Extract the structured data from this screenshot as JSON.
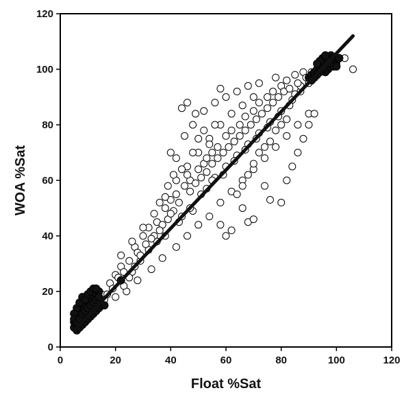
{
  "chart_data": {
    "type": "scatter",
    "title": "",
    "xlabel": "Float %Sat",
    "ylabel": "WOA %Sat",
    "xlim": [
      0,
      120
    ],
    "ylim": [
      0,
      120
    ],
    "xticks": [
      "0",
      "20",
      "40",
      "60",
      "80",
      "100",
      "120"
    ],
    "yticks": [
      "0",
      "20",
      "40",
      "60",
      "80",
      "100",
      "120"
    ],
    "grid": false,
    "legend": "none",
    "colors": {
      "axis": "#000000",
      "open_marker": "#ffffff",
      "filled_marker": "#111111",
      "fit_line": "#111111"
    },
    "series": [
      {
        "marker": "open-circle",
        "points": [
          [
            15,
            19
          ],
          [
            18,
            23
          ],
          [
            20,
            26
          ],
          [
            22,
            29
          ],
          [
            25,
            31
          ],
          [
            27,
            36
          ],
          [
            30,
            40
          ],
          [
            32,
            43
          ],
          [
            35,
            45
          ],
          [
            38,
            50
          ],
          [
            40,
            53
          ],
          [
            42,
            55
          ],
          [
            45,
            58
          ],
          [
            47,
            60
          ],
          [
            50,
            64
          ],
          [
            52,
            66
          ],
          [
            55,
            70
          ],
          [
            57,
            72
          ],
          [
            60,
            76
          ],
          [
            62,
            78
          ],
          [
            65,
            80
          ],
          [
            67,
            83
          ],
          [
            70,
            85
          ],
          [
            72,
            88
          ],
          [
            75,
            90
          ],
          [
            77,
            92
          ],
          [
            80,
            94
          ],
          [
            82,
            96
          ],
          [
            85,
            98
          ],
          [
            88,
            99
          ],
          [
            24,
            20
          ],
          [
            28,
            24
          ],
          [
            33,
            28
          ],
          [
            37,
            32
          ],
          [
            42,
            36
          ],
          [
            46,
            40
          ],
          [
            50,
            44
          ],
          [
            54,
            47
          ],
          [
            58,
            52
          ],
          [
            62,
            56
          ],
          [
            66,
            60
          ],
          [
            70,
            64
          ],
          [
            74,
            68
          ],
          [
            78,
            72
          ],
          [
            82,
            76
          ],
          [
            86,
            80
          ],
          [
            90,
            84
          ],
          [
            22,
            33
          ],
          [
            26,
            38
          ],
          [
            30,
            43
          ],
          [
            34,
            48
          ],
          [
            38,
            54
          ],
          [
            42,
            60
          ],
          [
            46,
            65
          ],
          [
            50,
            70
          ],
          [
            54,
            75
          ],
          [
            58,
            80
          ],
          [
            62,
            84
          ],
          [
            66,
            87
          ],
          [
            70,
            90
          ],
          [
            20,
            18
          ],
          [
            23,
            22
          ],
          [
            26,
            27
          ],
          [
            29,
            31
          ],
          [
            32,
            35
          ],
          [
            35,
            38
          ],
          [
            44,
            47
          ],
          [
            48,
            49
          ],
          [
            53,
            57
          ],
          [
            56,
            61
          ],
          [
            60,
            65
          ],
          [
            64,
            69
          ],
          [
            68,
            73
          ],
          [
            72,
            77
          ],
          [
            76,
            81
          ],
          [
            80,
            85
          ],
          [
            84,
            89
          ],
          [
            87,
            92
          ],
          [
            90,
            95
          ],
          [
            92,
            97
          ],
          [
            40,
            70
          ],
          [
            42,
            68
          ],
          [
            45,
            76
          ],
          [
            48,
            80
          ],
          [
            52,
            85
          ],
          [
            56,
            88
          ],
          [
            60,
            90
          ],
          [
            64,
            92
          ],
          [
            68,
            94
          ],
          [
            44,
            86
          ],
          [
            46,
            88
          ],
          [
            49,
            84
          ],
          [
            58,
            93
          ],
          [
            72,
            95
          ],
          [
            78,
            97
          ],
          [
            68,
            45
          ],
          [
            70,
            46
          ],
          [
            62,
            42
          ],
          [
            60,
            40
          ],
          [
            80,
            52
          ],
          [
            74,
            58
          ],
          [
            82,
            60
          ],
          [
            84,
            65
          ],
          [
            86,
            70
          ],
          [
            76,
            53
          ],
          [
            88,
            75
          ],
          [
            90,
            80
          ],
          [
            92,
            84
          ],
          [
            66,
            50
          ],
          [
            58,
            44
          ],
          [
            36,
            52
          ],
          [
            39,
            58
          ],
          [
            41,
            62
          ],
          [
            43,
            45
          ],
          [
            47,
            50
          ],
          [
            51,
            55
          ],
          [
            55,
            60
          ],
          [
            59,
            62
          ],
          [
            63,
            67
          ],
          [
            67,
            71
          ],
          [
            71,
            75
          ],
          [
            75,
            79
          ],
          [
            79,
            83
          ],
          [
            83,
            87
          ],
          [
            85,
            91
          ],
          [
            87,
            94
          ],
          [
            31,
            37
          ],
          [
            28,
            34
          ],
          [
            34,
            40
          ],
          [
            37,
            44
          ],
          [
            21,
            25
          ],
          [
            19,
            21
          ],
          [
            17,
            19
          ],
          [
            16,
            17
          ],
          [
            23,
            27
          ],
          [
            25,
            25
          ],
          [
            27,
            29
          ],
          [
            29,
            33
          ],
          [
            33,
            39
          ],
          [
            36,
            42
          ],
          [
            39,
            46
          ],
          [
            41,
            49
          ],
          [
            43,
            52
          ],
          [
            47,
            56
          ],
          [
            49,
            59
          ],
          [
            51,
            61
          ],
          [
            53,
            63
          ],
          [
            55,
            66
          ],
          [
            57,
            68
          ],
          [
            59,
            70
          ],
          [
            61,
            72
          ],
          [
            63,
            74
          ],
          [
            65,
            76
          ],
          [
            67,
            78
          ],
          [
            69,
            80
          ],
          [
            71,
            82
          ],
          [
            73,
            84
          ],
          [
            75,
            86
          ],
          [
            77,
            88
          ],
          [
            79,
            90
          ],
          [
            81,
            92
          ],
          [
            83,
            93
          ],
          [
            86,
            95
          ],
          [
            89,
            97
          ],
          [
            91,
            99
          ],
          [
            93,
            100
          ],
          [
            95,
            101
          ],
          [
            100,
            102
          ],
          [
            103,
            104
          ],
          [
            106,
            100
          ],
          [
            50,
            75
          ],
          [
            52,
            78
          ],
          [
            54,
            73
          ],
          [
            56,
            80
          ],
          [
            53,
            68
          ],
          [
            48,
            70
          ],
          [
            46,
            62
          ],
          [
            44,
            64
          ],
          [
            40,
            48
          ],
          [
            38,
            40
          ],
          [
            64,
            55
          ],
          [
            66,
            58
          ],
          [
            68,
            62
          ],
          [
            70,
            66
          ],
          [
            72,
            70
          ],
          [
            74,
            72
          ],
          [
            76,
            74
          ],
          [
            78,
            78
          ],
          [
            80,
            80
          ],
          [
            82,
            82
          ]
        ]
      },
      {
        "marker": "filled-circle",
        "points": [
          [
            5,
            7
          ],
          [
            5,
            9
          ],
          [
            6,
            8
          ],
          [
            6,
            11
          ],
          [
            7,
            9
          ],
          [
            7,
            12
          ],
          [
            8,
            10
          ],
          [
            8,
            14
          ],
          [
            9,
            11
          ],
          [
            9,
            15
          ],
          [
            10,
            12
          ],
          [
            10,
            16
          ],
          [
            11,
            13
          ],
          [
            11,
            17
          ],
          [
            12,
            14
          ],
          [
            12,
            18
          ],
          [
            13,
            15
          ],
          [
            13,
            19
          ],
          [
            14,
            16
          ],
          [
            14,
            20
          ],
          [
            6,
            14
          ],
          [
            7,
            16
          ],
          [
            8,
            18
          ],
          [
            9,
            17
          ],
          [
            10,
            19
          ],
          [
            11,
            20
          ],
          [
            12,
            21
          ],
          [
            13,
            21
          ],
          [
            5,
            12
          ],
          [
            6,
            6
          ],
          [
            7,
            7
          ],
          [
            8,
            8
          ],
          [
            9,
            9
          ],
          [
            10,
            10
          ],
          [
            11,
            11
          ],
          [
            12,
            12
          ],
          [
            13,
            13
          ],
          [
            14,
            14
          ],
          [
            15,
            15
          ],
          [
            16,
            15
          ],
          [
            5,
            10
          ],
          [
            6,
            9
          ],
          [
            7,
            10
          ],
          [
            8,
            12
          ],
          [
            9,
            13
          ],
          [
            10,
            14
          ],
          [
            11,
            15
          ],
          [
            12,
            16
          ],
          [
            13,
            17
          ],
          [
            14,
            18
          ],
          [
            22,
            24
          ],
          [
            90,
            97
          ],
          [
            91,
            98
          ],
          [
            92,
            99
          ],
          [
            93,
            100
          ],
          [
            94,
            101
          ],
          [
            95,
            102
          ],
          [
            96,
            103
          ],
          [
            97,
            104
          ],
          [
            98,
            105
          ],
          [
            99,
            104
          ],
          [
            100,
            103
          ],
          [
            101,
            104
          ],
          [
            99,
            102
          ],
          [
            98,
            101
          ],
          [
            97,
            100
          ],
          [
            96,
            99
          ],
          [
            95,
            100
          ],
          [
            94,
            99
          ],
          [
            93,
            98
          ],
          [
            92,
            97
          ],
          [
            91,
            96
          ],
          [
            97,
            103
          ],
          [
            98,
            102
          ],
          [
            99,
            101
          ],
          [
            100,
            101
          ],
          [
            95,
            104
          ],
          [
            96,
            105
          ],
          [
            94,
            103
          ],
          [
            93,
            102
          ]
        ]
      }
    ],
    "fit_line": {
      "x": [
        5,
        106
      ],
      "y": [
        6,
        112
      ]
    }
  }
}
